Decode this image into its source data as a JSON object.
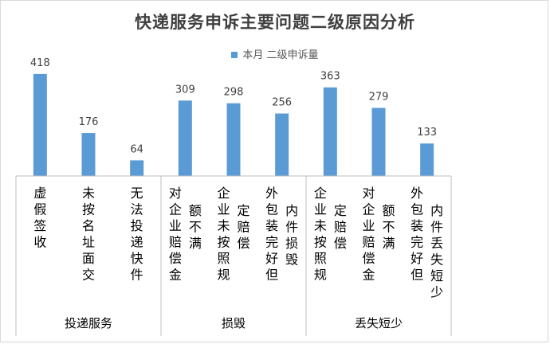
{
  "colors": {
    "bar": "#5b9bd5",
    "axis": "#bfbfbf",
    "text": "#404040"
  },
  "chart_data": {
    "type": "bar",
    "title": "快递服务申诉主要问题二级原因分析",
    "legend": {
      "position": "top",
      "entries": [
        "本月 二级申诉量"
      ]
    },
    "grid": false,
    "ylim": [
      0,
      460
    ],
    "series": [
      {
        "name": "本月 二级申诉量",
        "values": [
          418,
          176,
          64,
          309,
          298,
          256,
          363,
          279,
          133
        ]
      }
    ],
    "categories": [
      {
        "label": [
          "虚假签收"
        ],
        "group": "投递服务"
      },
      {
        "label": [
          "未按名址面交"
        ],
        "group": "投递服务"
      },
      {
        "label": [
          "无法投递快件"
        ],
        "group": "投递服务"
      },
      {
        "label": [
          "对企业赔偿金",
          "额不满"
        ],
        "group": "损毁"
      },
      {
        "label": [
          "企业未按照规",
          "定赔偿"
        ],
        "group": "损毁"
      },
      {
        "label": [
          "外包装完好但",
          "内件损毁"
        ],
        "group": "损毁"
      },
      {
        "label": [
          "企业未按照规",
          "定赔偿"
        ],
        "group": "丢失短少"
      },
      {
        "label": [
          "对企业赔偿金",
          "额不满"
        ],
        "group": "丢失短少"
      },
      {
        "label": [
          "外包装完好但",
          "内件丢失短少"
        ],
        "group": "丢失短少"
      }
    ],
    "groups": [
      "投递服务",
      "损毁",
      "丢失短少"
    ]
  }
}
